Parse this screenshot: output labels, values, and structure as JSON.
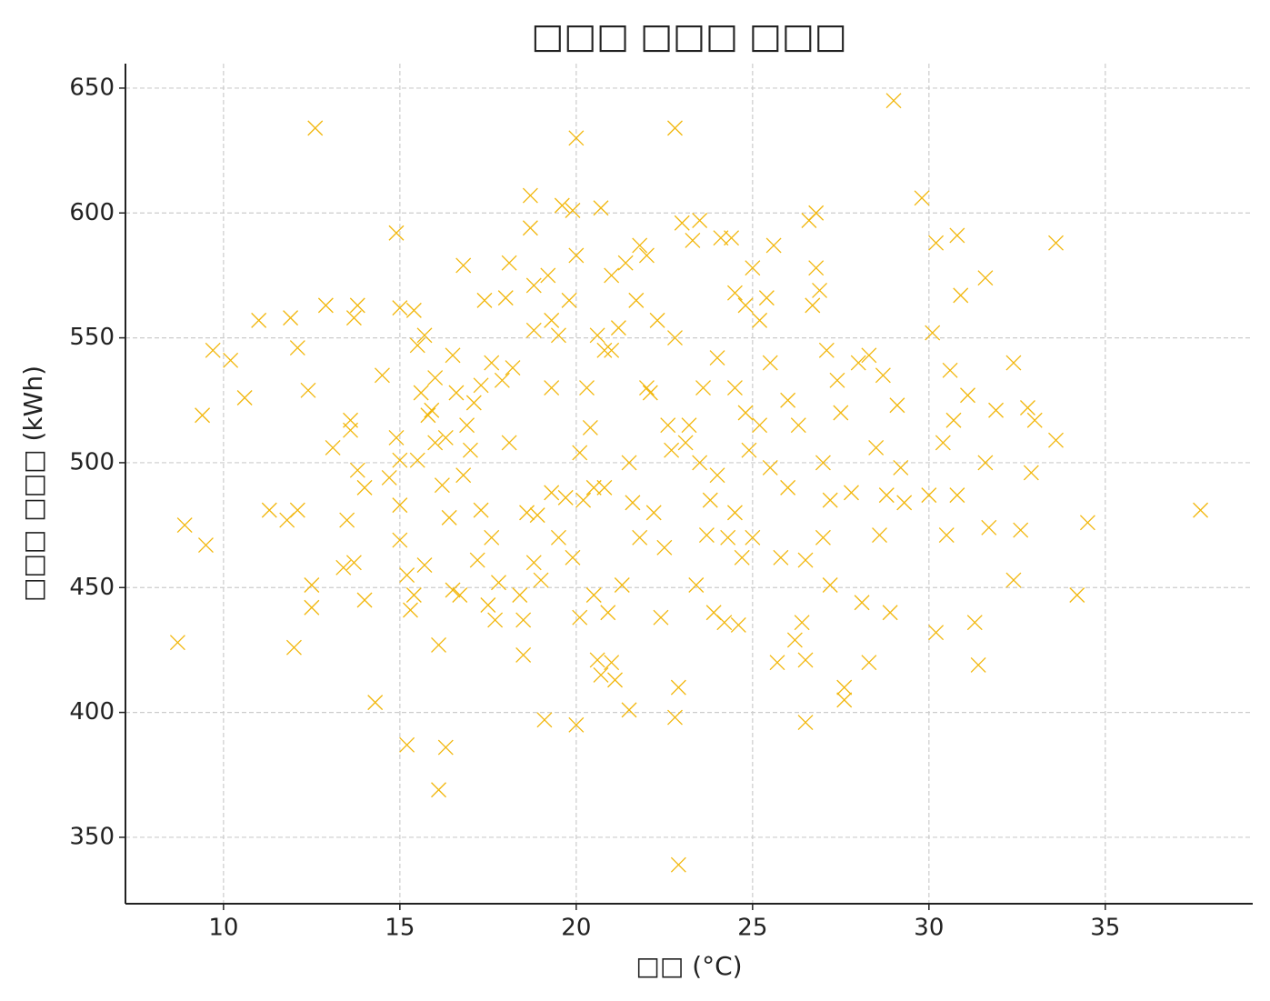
{
  "chart_data": {
    "type": "scatter",
    "title": "□□□ □□□ □□□",
    "x_label": "□□ (°C)",
    "y_label": "□□□ □□□ (kWh)",
    "color": "#f2b70d",
    "grid": true,
    "xlim": [
      7.22,
      39.18
    ],
    "ylim": [
      323.4,
      659.8
    ],
    "xticks": [
      10,
      15,
      20,
      25,
      30,
      35
    ],
    "yticks": [
      350,
      400,
      450,
      500,
      550,
      600,
      650
    ],
    "x": [
      8.7,
      8.9,
      9.4,
      9.5,
      9.7,
      10.2,
      10.6,
      11,
      11.3,
      11.8,
      11.9,
      12,
      12.1,
      12.1,
      12.4,
      12.5,
      12.5,
      12.6,
      12.9,
      13.1,
      13.4,
      13.5,
      13.6,
      13.6,
      13.7,
      13.7,
      13.8,
      13.8,
      14,
      14,
      14.3,
      14.5,
      14.7,
      14.9,
      14.9,
      15,
      15,
      15,
      15,
      15.2,
      15.2,
      15.3,
      15.4,
      15.4,
      15.5,
      15.5,
      15.6,
      15.7,
      15.7,
      15.8,
      15.9,
      16,
      16,
      16.1,
      16.1,
      16.2,
      16.3,
      16.3,
      16.4,
      16.5,
      16.5,
      16.6,
      16.7,
      16.8,
      16.8,
      16.9,
      17,
      17.1,
      17.2,
      17.3,
      17.3,
      17.4,
      17.5,
      17.6,
      17.6,
      17.7,
      17.8,
      17.9,
      18,
      18.1,
      18.1,
      18.2,
      18.4,
      18.5,
      18.5,
      18.6,
      18.7,
      18.7,
      18.8,
      18.8,
      18.9,
      19,
      19.1,
      19.2,
      19.3,
      19.3,
      19.3,
      19.5,
      19.6,
      19.7,
      19.8,
      19.9,
      19.9,
      20,
      20,
      20,
      20.1,
      20.1,
      20.3,
      20.4,
      20.5,
      20.6,
      20.6,
      20.7,
      20.7,
      20.8,
      20.9,
      21,
      21,
      21.1,
      21.2,
      21.3,
      21.4,
      21.5,
      21.6,
      21.8,
      22,
      22.1,
      22.3,
      22.4,
      22.5,
      22.6,
      22.8,
      22.8,
      22.9,
      22.9,
      23,
      23.1,
      23.3,
      23.4,
      23.5,
      23.7,
      23.9,
      24,
      24.1,
      24.2,
      24.4,
      24.5,
      24.6,
      24.7,
      24.8,
      24.9,
      25,
      25.2,
      25.4,
      25.5,
      25.6,
      25.7,
      25.8,
      26,
      26.2,
      26.4,
      26.5,
      26.5,
      26.5,
      26.6,
      26.7,
      26.8,
      26.8,
      26.9,
      27,
      27.1,
      27.2,
      27.4,
      27.5,
      27.6,
      27.6,
      27.8,
      28,
      28.1,
      28.3,
      28.3,
      28.5,
      28.6,
      28.7,
      28.8,
      28.9,
      29,
      29.1,
      29.2,
      29.3,
      29.8,
      30,
      30.1,
      30.2,
      30.2,
      30.4,
      30.5,
      30.6,
      30.7,
      30.8,
      30.8,
      30.9,
      31.1,
      31.3,
      31.4,
      31.6,
      31.6,
      31.7,
      31.9,
      32.4,
      32.4,
      32.6,
      32.8,
      32.9,
      33,
      33.6,
      33.6,
      34.2,
      34.5,
      37.7,
      22,
      21,
      24.5,
      20.5,
      23.5,
      24,
      22.7,
      23.2,
      19.5,
      21.8,
      24.8,
      25.2,
      18.8,
      20.2,
      21.5,
      23.8,
      25.5,
      26.3,
      27.2,
      24.3,
      22.2,
      20.8,
      21.7,
      22.8,
      23.6,
      24.5,
      25,
      26,
      27
    ],
    "values": [
      428,
      475,
      519,
      467,
      545,
      541,
      526,
      557,
      481,
      477,
      558,
      426,
      481,
      546,
      529,
      451,
      442,
      634,
      563,
      506,
      458,
      477,
      517,
      513,
      460,
      558,
      563,
      497,
      490,
      445,
      404,
      535,
      494,
      510,
      592,
      562,
      501,
      483,
      469,
      387,
      455,
      441,
      447,
      561,
      547,
      501,
      528,
      551,
      459,
      519,
      521,
      508,
      534,
      427,
      369,
      491,
      386,
      510,
      478,
      543,
      449,
      528,
      447,
      579,
      495,
      515,
      505,
      524,
      461,
      481,
      531,
      565,
      443,
      470,
      540,
      437,
      452,
      533,
      566,
      580,
      508,
      538,
      447,
      437,
      423,
      480,
      607,
      594,
      571,
      553,
      479,
      453,
      397,
      575,
      557,
      530,
      488,
      551,
      603,
      486,
      565,
      601,
      462,
      630,
      395,
      583,
      504,
      438,
      530,
      514,
      447,
      421,
      551,
      415,
      602,
      490,
      440,
      420,
      575,
      413,
      554,
      451,
      580,
      401,
      484,
      587,
      583,
      528,
      557,
      438,
      466,
      515,
      634,
      398,
      339,
      410,
      596,
      508,
      589,
      451,
      597,
      471,
      440,
      542,
      590,
      436,
      590,
      568,
      435,
      462,
      563,
      505,
      578,
      557,
      566,
      498,
      587,
      420,
      462,
      525,
      429,
      436,
      396,
      421,
      461,
      597,
      563,
      600,
      578,
      569,
      500,
      545,
      451,
      533,
      520,
      410,
      405,
      488,
      540,
      444,
      420,
      543,
      506,
      471,
      535,
      487,
      440,
      645,
      523,
      498,
      484,
      606,
      487,
      552,
      432,
      588,
      508,
      471,
      537,
      517,
      591,
      487,
      567,
      527,
      436,
      419,
      574,
      500,
      474,
      521,
      540,
      453,
      473,
      522,
      496,
      517,
      509,
      588,
      447,
      476,
      481,
      530,
      545,
      480,
      490,
      500,
      495,
      505,
      515,
      470,
      470,
      520,
      515,
      460,
      485,
      500,
      485,
      540,
      515,
      485,
      470,
      480,
      545,
      565,
      550,
      530,
      530,
      470,
      490,
      470
    ]
  }
}
